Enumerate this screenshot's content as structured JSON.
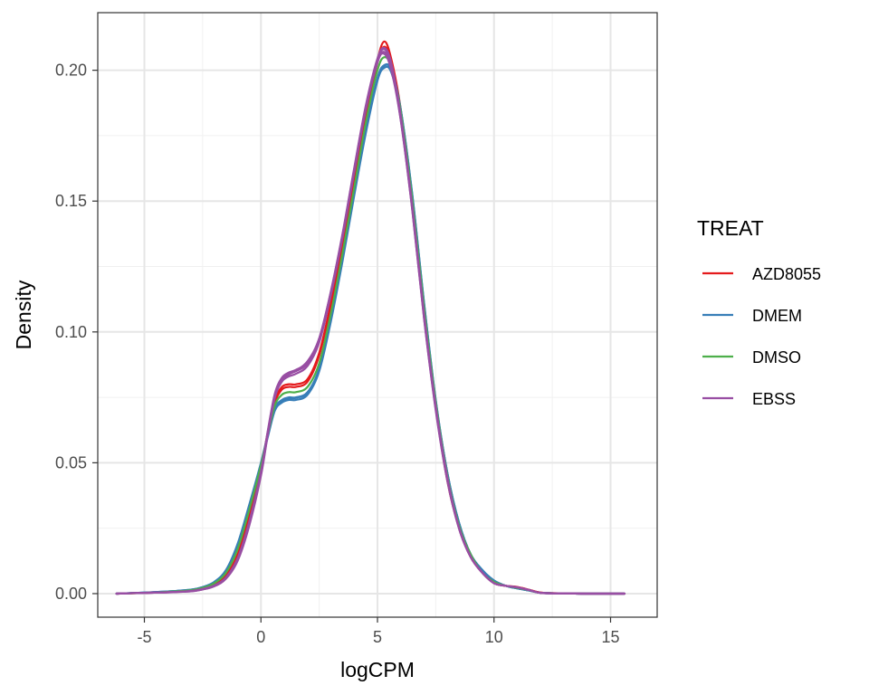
{
  "chart_data": {
    "type": "line",
    "subtype": "density",
    "xlabel": "logCPM",
    "ylabel": "Density",
    "xlim": [
      -7,
      17
    ],
    "ylim": [
      -0.009,
      0.222
    ],
    "x_ticks": [
      -5,
      0,
      5,
      10,
      15
    ],
    "x_tick_labels": [
      "-5",
      "0",
      "5",
      "10",
      "15"
    ],
    "y_ticks": [
      0.0,
      0.05,
      0.1,
      0.15,
      0.2
    ],
    "y_tick_labels": [
      "0.00",
      "0.05",
      "0.10",
      "0.15",
      "0.20"
    ],
    "grid": true,
    "legend": {
      "title": "TREAT",
      "position": "right",
      "entries": [
        {
          "label": "AZD8055",
          "color": "#e41a1c"
        },
        {
          "label": "DMEM",
          "color": "#377eb8"
        },
        {
          "label": "DMSO",
          "color": "#4daf4a"
        },
        {
          "label": "EBSS",
          "color": "#984ea3"
        }
      ]
    },
    "x": [
      -6.2,
      -5,
      -4,
      -3,
      -2.5,
      -2,
      -1.5,
      -1,
      -0.5,
      0,
      0.3,
      0.6,
      0.9,
      1.2,
      1.5,
      2,
      2.5,
      3,
      3.5,
      4,
      4.5,
      5,
      5.3,
      5.6,
      6,
      6.5,
      7,
      7.5,
      8,
      8.5,
      9,
      9.5,
      10,
      10.5,
      11,
      11.5,
      12,
      13,
      14,
      15.6
    ],
    "series": [
      {
        "group": "AZD8055",
        "color": "#e41a1c",
        "values": [
          0,
          0.0003,
          0.0006,
          0.0012,
          0.002,
          0.0035,
          0.007,
          0.015,
          0.03,
          0.048,
          0.062,
          0.074,
          0.079,
          0.08,
          0.08,
          0.082,
          0.092,
          0.111,
          0.133,
          0.158,
          0.183,
          0.204,
          0.211,
          0.204,
          0.185,
          0.15,
          0.108,
          0.072,
          0.044,
          0.025,
          0.014,
          0.008,
          0.004,
          0.003,
          0.0025,
          0.0015,
          0.0004,
          0.0001,
          0,
          0
        ]
      },
      {
        "group": "AZD8055",
        "color": "#e41a1c",
        "values": [
          0,
          0.0003,
          0.0006,
          0.0011,
          0.0019,
          0.0033,
          0.0067,
          0.0145,
          0.029,
          0.047,
          0.061,
          0.073,
          0.078,
          0.079,
          0.079,
          0.081,
          0.091,
          0.11,
          0.132,
          0.157,
          0.182,
          0.203,
          0.209,
          0.203,
          0.184,
          0.149,
          0.107,
          0.071,
          0.043,
          0.025,
          0.014,
          0.008,
          0.004,
          0.003,
          0.0025,
          0.0015,
          0.0004,
          0.0001,
          0,
          0
        ]
      },
      {
        "group": "DMEM",
        "color": "#377eb8",
        "values": [
          0,
          0.0004,
          0.0008,
          0.0015,
          0.0025,
          0.0045,
          0.009,
          0.019,
          0.034,
          0.05,
          0.061,
          0.071,
          0.074,
          0.075,
          0.075,
          0.077,
          0.086,
          0.105,
          0.128,
          0.153,
          0.177,
          0.197,
          0.202,
          0.2,
          0.185,
          0.152,
          0.111,
          0.074,
          0.046,
          0.027,
          0.015,
          0.009,
          0.005,
          0.003,
          0.002,
          0.0012,
          0.0003,
          0.0001,
          0,
          0
        ]
      },
      {
        "group": "DMEM",
        "color": "#377eb8",
        "values": [
          0,
          0.0004,
          0.0008,
          0.0014,
          0.0024,
          0.0043,
          0.0088,
          0.0185,
          0.033,
          0.049,
          0.06,
          0.07,
          0.073,
          0.074,
          0.074,
          0.076,
          0.085,
          0.104,
          0.127,
          0.152,
          0.176,
          0.196,
          0.201,
          0.199,
          0.184,
          0.151,
          0.11,
          0.073,
          0.046,
          0.027,
          0.015,
          0.009,
          0.005,
          0.003,
          0.002,
          0.0012,
          0.0003,
          0.0001,
          0,
          0
        ]
      },
      {
        "group": "DMEM",
        "color": "#377eb8",
        "values": [
          0,
          0.0004,
          0.0008,
          0.0015,
          0.0025,
          0.0044,
          0.0089,
          0.0188,
          0.0335,
          0.0495,
          0.0605,
          0.0705,
          0.0735,
          0.0745,
          0.0748,
          0.0768,
          0.0858,
          0.1048,
          0.1278,
          0.1528,
          0.1768,
          0.1968,
          0.2018,
          0.1998,
          0.1848,
          0.1518,
          0.1108,
          0.0738,
          0.046,
          0.027,
          0.015,
          0.009,
          0.005,
          0.003,
          0.002,
          0.0012,
          0.0003,
          0.0001,
          0,
          0
        ]
      },
      {
        "group": "DMSO",
        "color": "#4daf4a",
        "values": [
          0,
          0.0003,
          0.0007,
          0.0013,
          0.0022,
          0.004,
          0.008,
          0.017,
          0.032,
          0.049,
          0.061,
          0.072,
          0.076,
          0.077,
          0.077,
          0.079,
          0.088,
          0.107,
          0.13,
          0.155,
          0.18,
          0.2,
          0.205,
          0.201,
          0.184,
          0.15,
          0.109,
          0.073,
          0.045,
          0.026,
          0.015,
          0.008,
          0.0045,
          0.003,
          0.0022,
          0.0013,
          0.0003,
          0.0001,
          0,
          0
        ]
      },
      {
        "group": "EBSS",
        "color": "#984ea3",
        "values": [
          0,
          0.0003,
          0.0005,
          0.001,
          0.0017,
          0.003,
          0.006,
          0.013,
          0.027,
          0.046,
          0.062,
          0.076,
          0.082,
          0.084,
          0.085,
          0.088,
          0.097,
          0.115,
          0.137,
          0.162,
          0.186,
          0.204,
          0.208,
          0.202,
          0.182,
          0.147,
          0.106,
          0.071,
          0.044,
          0.025,
          0.014,
          0.008,
          0.004,
          0.003,
          0.0024,
          0.0014,
          0.0003,
          0.0001,
          0,
          0
        ]
      },
      {
        "group": "EBSS",
        "color": "#984ea3",
        "values": [
          0,
          0.0003,
          0.0005,
          0.0009,
          0.0016,
          0.0028,
          0.0057,
          0.0125,
          0.026,
          0.045,
          0.061,
          0.075,
          0.081,
          0.083,
          0.084,
          0.087,
          0.096,
          0.114,
          0.136,
          0.161,
          0.185,
          0.203,
          0.207,
          0.201,
          0.181,
          0.146,
          0.105,
          0.07,
          0.043,
          0.025,
          0.014,
          0.008,
          0.004,
          0.003,
          0.0024,
          0.0014,
          0.0003,
          0.0001,
          0,
          0
        ]
      },
      {
        "group": "EBSS",
        "color": "#984ea3",
        "values": [
          0,
          0.0003,
          0.0005,
          0.001,
          0.0018,
          0.0031,
          0.0062,
          0.0135,
          0.0275,
          0.0465,
          0.0625,
          0.0765,
          0.0825,
          0.0845,
          0.0855,
          0.0885,
          0.0975,
          0.1155,
          0.1375,
          0.1625,
          0.1865,
          0.2045,
          0.2085,
          0.2025,
          0.1825,
          0.1475,
          0.1065,
          0.0715,
          0.0442,
          0.0252,
          0.0141,
          0.008,
          0.004,
          0.003,
          0.0024,
          0.0014,
          0.0003,
          0.0001,
          0,
          0
        ]
      },
      {
        "group": "EBSS",
        "color": "#984ea3",
        "values": [
          0,
          0.0003,
          0.0005,
          0.0009,
          0.0016,
          0.0029,
          0.0058,
          0.0128,
          0.0265,
          0.0455,
          0.0615,
          0.0755,
          0.0815,
          0.0838,
          0.0852,
          0.0888,
          0.0975,
          0.1152,
          0.1368,
          0.1612,
          0.1852,
          0.2032,
          0.2062,
          0.1998,
          0.1808,
          0.1462,
          0.1052,
          0.0705,
          0.0435,
          0.0248,
          0.0139,
          0.0079,
          0.004,
          0.003,
          0.0024,
          0.0014,
          0.0003,
          0.0001,
          0,
          0
        ]
      }
    ]
  }
}
